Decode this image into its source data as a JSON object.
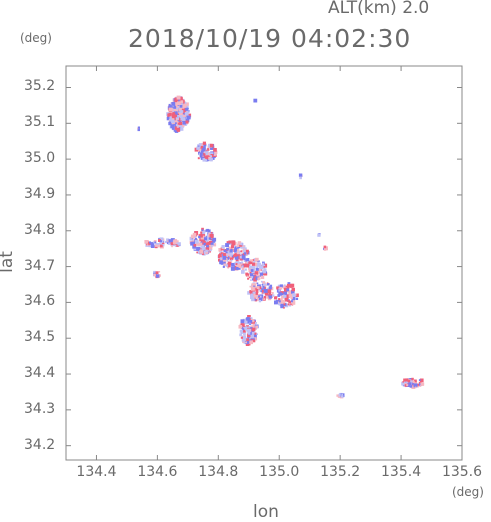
{
  "chart_data": {
    "type": "scatter",
    "title": "2018/10/19 04:02:30",
    "altitude_label": "ALT(km) 2.0",
    "xlabel": "lon",
    "ylabel": "lat",
    "x_unit": "(deg)",
    "y_unit": "(deg)",
    "xlim": [
      134.3,
      135.6
    ],
    "ylim": [
      34.16,
      35.26
    ],
    "xticks": [
      "134.4",
      "134.6",
      "134.8",
      "135.0",
      "135.2",
      "135.4",
      "135.6"
    ],
    "yticks": [
      "35.2",
      "35.1",
      "35.0",
      "34.9",
      "34.8",
      "34.7",
      "34.6",
      "34.5",
      "34.4",
      "34.3",
      "34.2"
    ],
    "grid": false,
    "colors": {
      "positive": "#f0607a",
      "negative": "#7a7cf0",
      "pale_positive": "#f7b8c2",
      "pale_negative": "#c0c2f6",
      "frame": "#888888"
    },
    "series": [
      {
        "clusters": [
          {
            "lon": 134.67,
            "lat": 35.125,
            "rx": 0.035,
            "ry": 0.048,
            "n": 300
          },
          {
            "lon": 134.76,
            "lat": 35.02,
            "rx": 0.035,
            "ry": 0.025,
            "n": 110
          },
          {
            "lon": 134.62,
            "lat": 34.765,
            "rx": 0.06,
            "ry": 0.012,
            "n": 80
          },
          {
            "lon": 134.6,
            "lat": 34.68,
            "rx": 0.012,
            "ry": 0.01,
            "n": 10
          },
          {
            "lon": 134.75,
            "lat": 34.77,
            "rx": 0.04,
            "ry": 0.035,
            "n": 140
          },
          {
            "lon": 134.85,
            "lat": 34.73,
            "rx": 0.05,
            "ry": 0.04,
            "n": 170
          },
          {
            "lon": 134.92,
            "lat": 34.69,
            "rx": 0.04,
            "ry": 0.03,
            "n": 90
          },
          {
            "lon": 134.94,
            "lat": 34.63,
            "rx": 0.04,
            "ry": 0.03,
            "n": 90
          },
          {
            "lon": 135.02,
            "lat": 34.62,
            "rx": 0.04,
            "ry": 0.035,
            "n": 90
          },
          {
            "lon": 134.9,
            "lat": 34.52,
            "rx": 0.03,
            "ry": 0.04,
            "n": 120
          },
          {
            "lon": 135.44,
            "lat": 34.375,
            "rx": 0.035,
            "ry": 0.014,
            "n": 50
          },
          {
            "lon": 135.2,
            "lat": 34.34,
            "rx": 0.01,
            "ry": 0.006,
            "n": 12
          },
          {
            "lon": 135.07,
            "lat": 34.95,
            "rx": 0.003,
            "ry": 0.006,
            "n": 4
          },
          {
            "lon": 134.54,
            "lat": 35.085,
            "rx": 0.004,
            "ry": 0.004,
            "n": 3
          },
          {
            "lon": 134.92,
            "lat": 35.165,
            "rx": 0.003,
            "ry": 0.003,
            "n": 2
          },
          {
            "lon": 135.15,
            "lat": 34.75,
            "rx": 0.005,
            "ry": 0.006,
            "n": 4
          },
          {
            "lon": 135.13,
            "lat": 34.79,
            "rx": 0.003,
            "ry": 0.003,
            "n": 2
          }
        ]
      }
    ]
  }
}
